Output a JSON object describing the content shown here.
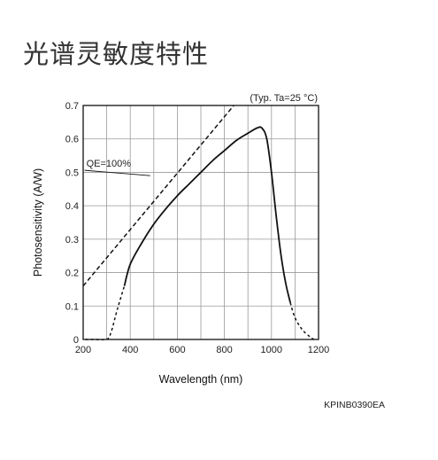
{
  "page": {
    "title": "光谱灵敏度特性"
  },
  "chart_data": {
    "type": "line",
    "title": "",
    "condition": "(Typ. Ta=25 °C)",
    "xlabel": "Wavelength (nm)",
    "ylabel": "Photosensitivity (A/W)",
    "xlim": [
      200,
      1200
    ],
    "ylim": [
      0,
      0.7
    ],
    "x_ticks": [
      200,
      400,
      600,
      800,
      1000,
      1200
    ],
    "y_ticks": [
      0,
      0.1,
      0.2,
      0.3,
      0.4,
      0.5,
      0.6,
      0.7
    ],
    "y_tick_labels": [
      "0",
      "0.1",
      "0.2",
      "0.3",
      "0.4",
      "0.5",
      "0.6",
      "0.7"
    ],
    "grid": true,
    "figure_code": "KPINB0390EA",
    "annotations": [
      {
        "text": "QE=100%",
        "x": 300,
        "y": 0.53
      }
    ],
    "series": [
      {
        "style": "dashed",
        "x": [
          200,
          840
        ],
        "y": [
          0.16,
          0.7
        ]
      },
      {
        "style": "solid",
        "x": [
          375,
          400,
          450,
          500,
          550,
          600,
          650,
          700,
          750,
          800,
          850,
          900,
          940,
          960,
          980,
          1000,
          1020,
          1040,
          1060,
          1080
        ],
        "y": [
          0.16,
          0.225,
          0.29,
          0.345,
          0.39,
          0.43,
          0.465,
          0.5,
          0.535,
          0.565,
          0.595,
          0.617,
          0.633,
          0.632,
          0.6,
          0.5,
          0.37,
          0.255,
          0.17,
          0.11
        ]
      },
      {
        "style": "dotted-short",
        "x": [
          210,
          250,
          300,
          320,
          345,
          375
        ],
        "y": [
          0.0,
          0.0,
          0.0,
          0.025,
          0.09,
          0.16
        ]
      },
      {
        "style": "dotted-short",
        "x": [
          1080,
          1100,
          1130,
          1160,
          1180
        ],
        "y": [
          0.11,
          0.065,
          0.03,
          0.01,
          0.0
        ]
      }
    ]
  }
}
